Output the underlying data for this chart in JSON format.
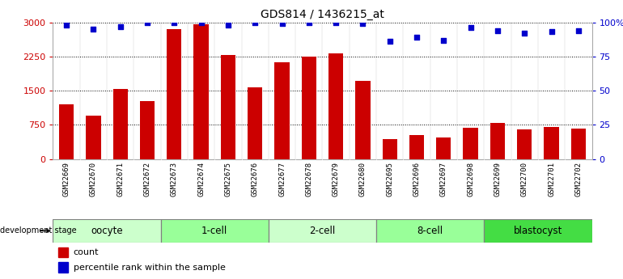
{
  "title": "GDS814 / 1436215_at",
  "samples": [
    "GSM22669",
    "GSM22670",
    "GSM22671",
    "GSM22672",
    "GSM22673",
    "GSM22674",
    "GSM22675",
    "GSM22676",
    "GSM22677",
    "GSM22678",
    "GSM22679",
    "GSM22680",
    "GSM22695",
    "GSM22696",
    "GSM22697",
    "GSM22698",
    "GSM22699",
    "GSM22700",
    "GSM22701",
    "GSM22702"
  ],
  "counts": [
    1200,
    950,
    1530,
    1280,
    2850,
    2960,
    2280,
    1580,
    2130,
    2250,
    2320,
    1720,
    430,
    530,
    480,
    690,
    790,
    650,
    700,
    660
  ],
  "percentiles": [
    98,
    95,
    97,
    100,
    100,
    100,
    98,
    100,
    99,
    100,
    100,
    99,
    86,
    89,
    87,
    96,
    94,
    92,
    93,
    94
  ],
  "groups": [
    {
      "label": "oocyte",
      "start": 0,
      "end": 4,
      "color": "#ccffcc"
    },
    {
      "label": "1-cell",
      "start": 4,
      "end": 8,
      "color": "#99ff99"
    },
    {
      "label": "2-cell",
      "start": 8,
      "end": 12,
      "color": "#ccffcc"
    },
    {
      "label": "8-cell",
      "start": 12,
      "end": 16,
      "color": "#99ff99"
    },
    {
      "label": "blastocyst",
      "start": 16,
      "end": 20,
      "color": "#44dd44"
    }
  ],
  "ylim_left": [
    0,
    3000
  ],
  "yticks_left": [
    0,
    750,
    1500,
    2250,
    3000
  ],
  "yticks_right_labels": [
    "0",
    "25",
    "50",
    "75",
    "100%"
  ],
  "bar_color": "#cc0000",
  "dot_color": "#0000cc",
  "bar_width": 0.55,
  "legend_count_label": "count",
  "legend_percentile_label": "percentile rank within the sample",
  "xlabel_group": "development stage",
  "background_color": "#ffffff",
  "xtick_bg": "#dddddd",
  "tick_color_left": "#cc0000",
  "tick_color_right": "#0000cc",
  "title_fontsize": 10,
  "axis_fontsize": 8,
  "xtick_fontsize": 6.5,
  "group_fontsize": 8.5,
  "legend_fontsize": 8
}
